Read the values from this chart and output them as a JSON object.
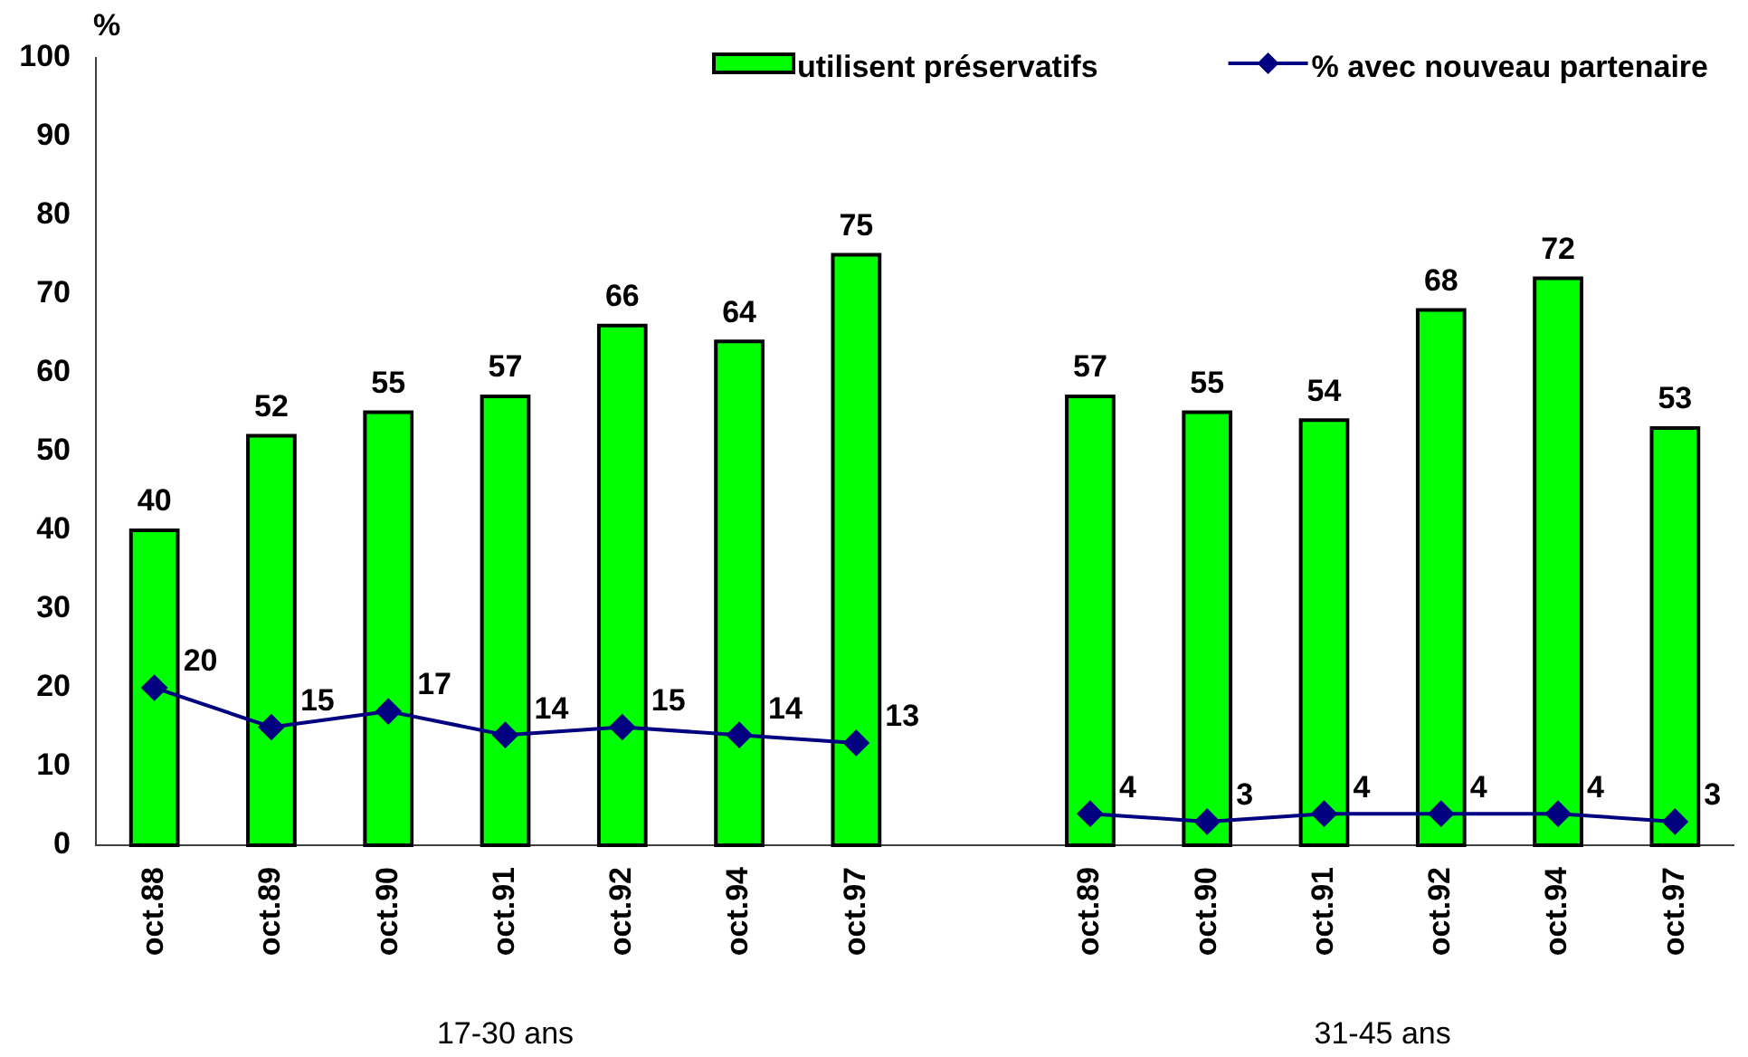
{
  "chart_data": {
    "type": "bar",
    "categories": [
      "oct.88",
      "oct.89",
      "oct.90",
      "oct.91",
      "oct.92",
      "oct.94",
      "oct.97",
      null,
      "oct.89",
      "oct.90",
      "oct.91",
      "oct.92",
      "oct.94",
      "oct.97"
    ],
    "series": [
      {
        "name": "utilisent préservatifs",
        "color": "#00ff00",
        "values": [
          40,
          52,
          55,
          57,
          66,
          64,
          75,
          null,
          57,
          55,
          54,
          68,
          72,
          53
        ]
      },
      {
        "name": "% avec nouveau partenaire",
        "type": "line",
        "color": "#000080",
        "values": [
          20,
          15,
          17,
          14,
          15,
          14,
          13,
          null,
          4,
          3,
          4,
          4,
          4,
          3
        ]
      }
    ],
    "ylabel": "%",
    "ylim": [
      0,
      100
    ],
    "yticks": [
      0,
      10,
      20,
      30,
      40,
      50,
      60,
      70,
      80,
      90,
      100
    ],
    "grid": false,
    "legend": "top right",
    "marker": "diamond",
    "line_style": "solid",
    "data_labels": true,
    "annotations": [
      "17-30 ans",
      "31-45 ans"
    ]
  }
}
